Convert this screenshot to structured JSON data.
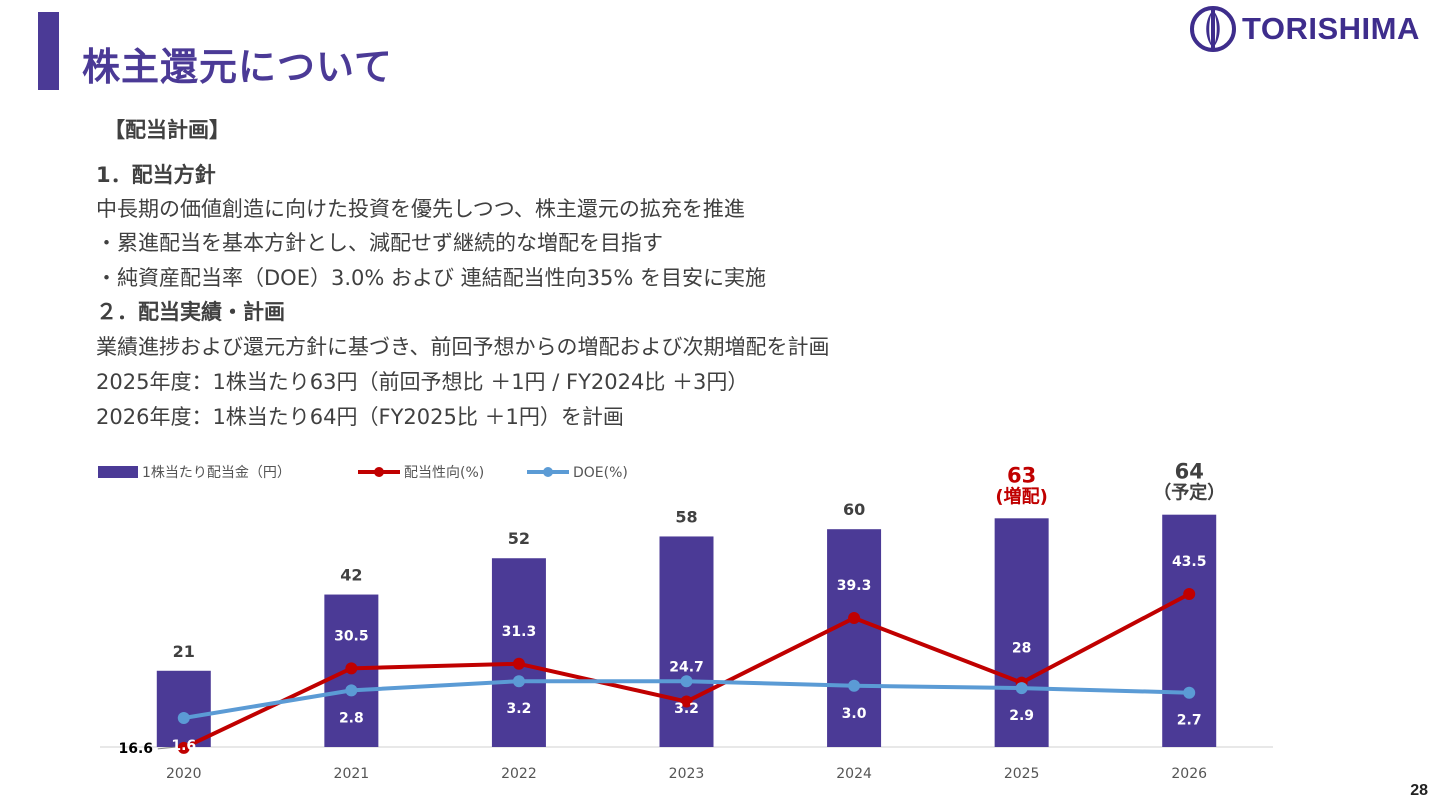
{
  "header": {
    "title": "株主還元について",
    "logo_text": "TORISHIMA",
    "brand_color": "#4b3a96"
  },
  "body": {
    "section": "【配当計画】",
    "heading1": "1．配当方針",
    "lines1": [
      "中長期の価値創造に向けた投資を優先しつつ、株主還元の拡充を推進",
      "・累進配当を基本方針とし、減配せず継続的な増配を目指す",
      "・純資産配当率（DOE）3.0% および 連結配当性向35% を目安に実施"
    ],
    "heading2": "２．配当実績・計画",
    "lines2": [
      "業績進捗および還元方針に基づき、前回予想からの増配および次期増配を計画",
      "2025年度：1株当たり63円（前回予想比 ＋1円 / FY2024比 ＋3円）",
      "2026年度：1株当たり64円（FY2025比 ＋1円）を計画"
    ]
  },
  "page_number": "28",
  "chart_data": {
    "type": "bar",
    "categories": [
      "2020",
      "2021",
      "2022",
      "2023",
      "2024",
      "2025",
      "2026"
    ],
    "series": [
      {
        "name": "1株当たり配当金（円）",
        "kind": "bar",
        "color": "#4b3a96",
        "values": [
          21,
          42,
          52,
          58,
          60,
          63,
          64
        ],
        "labels": [
          "21",
          "42",
          "52",
          "58",
          "60",
          "63",
          "64"
        ]
      },
      {
        "name": "配当性向(%)",
        "kind": "line",
        "color": "#c00000",
        "values": [
          16.6,
          30.5,
          31.3,
          24.7,
          39.3,
          28,
          43.5
        ],
        "labels": [
          "16.6",
          "30.5",
          "31.3",
          "24.7",
          "39.3",
          "28",
          "43.5"
        ]
      },
      {
        "name": "DOE(%)",
        "kind": "line",
        "color": "#5b9bd5",
        "values": [
          1.6,
          2.8,
          3.2,
          3.2,
          3.0,
          2.9,
          2.7
        ],
        "labels": [
          "1.6",
          "2.8",
          "3.2",
          "3.2",
          "3.0",
          "2.9",
          "2.7"
        ]
      }
    ],
    "annotations": [
      {
        "category": "2025",
        "text": "(増配)",
        "color": "#c00000"
      },
      {
        "category": "2026",
        "text": "（予定）",
        "color": "#404040"
      }
    ],
    "ylim": [
      0,
      66
    ],
    "legend": "top-left",
    "grid": false
  }
}
